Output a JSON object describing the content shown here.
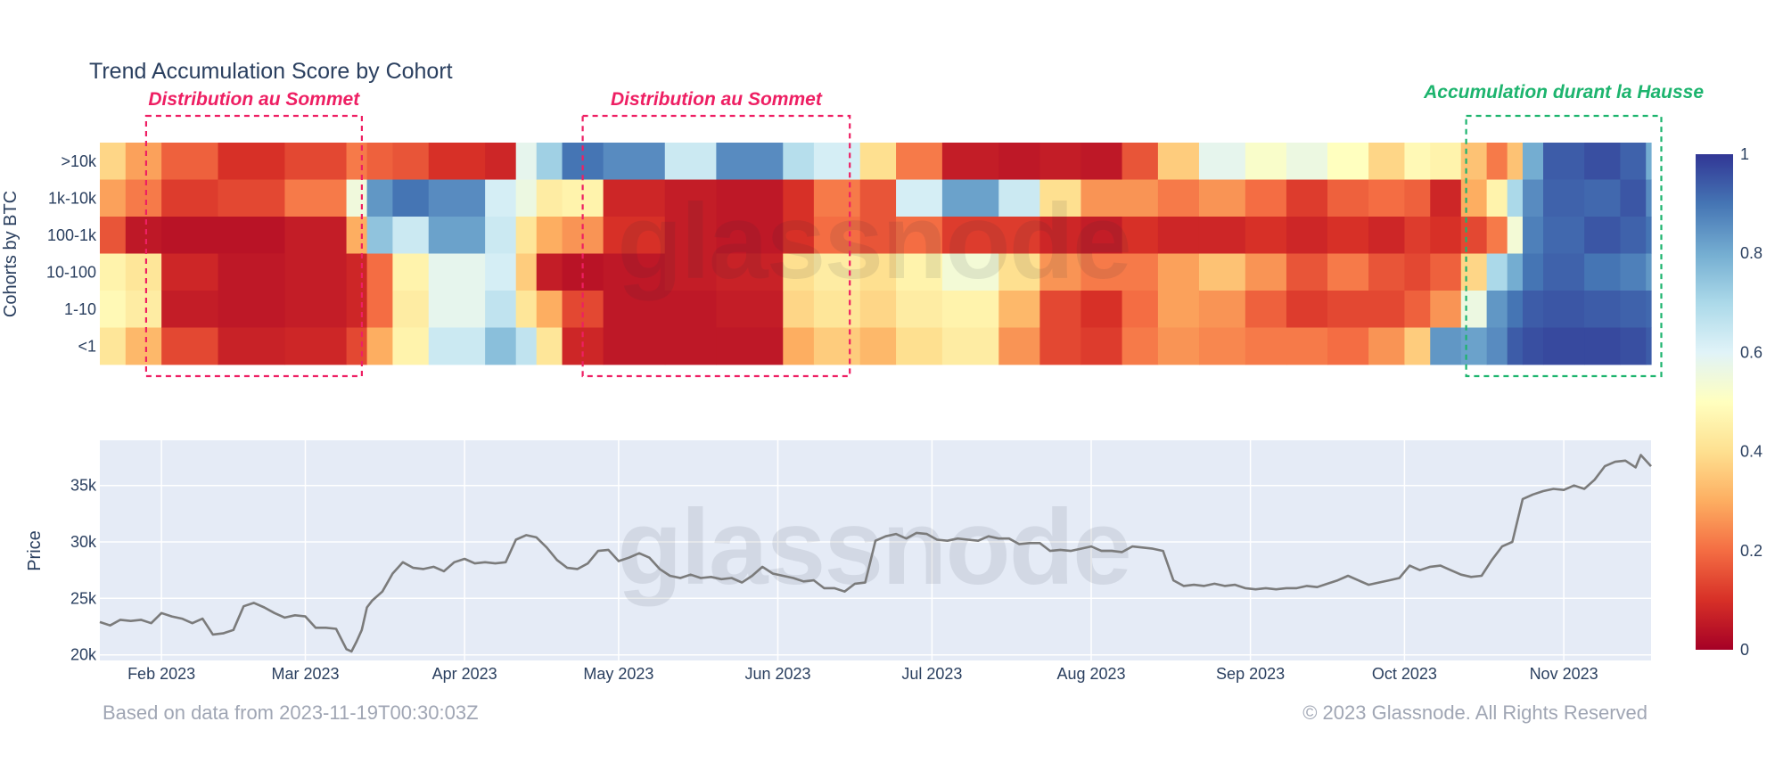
{
  "colors": {
    "distribution": "#ee1f63",
    "accumulation": "#1db46e",
    "price_line": "#7b7b7b",
    "plot_bg": "#e5ebf6",
    "colorscale": [
      "#a50026",
      "#d73027",
      "#f46d43",
      "#fdae61",
      "#fee090",
      "#ffffbf",
      "#e0f3f8",
      "#abd9e9",
      "#74add1",
      "#4575b4",
      "#313695"
    ]
  },
  "chart_data": [
    {
      "type": "heatmap",
      "title": "Trend Accumulation Score by Cohort",
      "ylabel": "Cohorts by BTC",
      "rows": [
        ">10k",
        "1k-10k",
        "100-1k",
        "10-100",
        "1-10",
        "<1"
      ],
      "x_range": [
        "2023-01-20",
        "2023-11-18"
      ],
      "zlim": [
        0,
        1
      ],
      "colorbar_ticks": [
        "1",
        "0.8",
        "0.6",
        "0.4",
        "0.2",
        "0"
      ],
      "segments": [
        {
          "start": "2023-01-20",
          "scores": [
            0.38,
            0.28,
            0.16,
            0.46,
            0.48,
            0.42
          ]
        },
        {
          "start": "2023-01-25",
          "scores": [
            0.28,
            0.22,
            0.05,
            0.42,
            0.44,
            0.32
          ]
        },
        {
          "start": "2023-02-01",
          "scores": [
            0.18,
            0.12,
            0.04,
            0.08,
            0.06,
            0.14
          ]
        },
        {
          "start": "2023-02-12",
          "scores": [
            0.1,
            0.14,
            0.04,
            0.05,
            0.05,
            0.07
          ]
        },
        {
          "start": "2023-02-25",
          "scores": [
            0.14,
            0.22,
            0.06,
            0.06,
            0.06,
            0.08
          ]
        },
        {
          "start": "2023-03-09",
          "scores": [
            0.22,
            0.55,
            0.3,
            0.08,
            0.08,
            0.14
          ]
        },
        {
          "start": "2023-03-13",
          "scores": [
            0.18,
            0.84,
            0.75,
            0.2,
            0.2,
            0.3
          ]
        },
        {
          "start": "2023-03-18",
          "scores": [
            0.16,
            0.9,
            0.64,
            0.46,
            0.44,
            0.46
          ]
        },
        {
          "start": "2023-03-25",
          "scores": [
            0.1,
            0.86,
            0.82,
            0.58,
            0.58,
            0.64
          ]
        },
        {
          "start": "2023-04-05",
          "scores": [
            0.08,
            0.62,
            0.64,
            0.62,
            0.66,
            0.76
          ]
        },
        {
          "start": "2023-04-11",
          "scores": [
            0.58,
            0.56,
            0.42,
            0.36,
            0.42,
            0.66
          ]
        },
        {
          "start": "2023-04-15",
          "scores": [
            0.72,
            0.44,
            0.3,
            0.06,
            0.3,
            0.42
          ]
        },
        {
          "start": "2023-04-20",
          "scores": [
            0.9,
            0.46,
            0.26,
            0.04,
            0.14,
            0.08
          ]
        },
        {
          "start": "2023-04-28",
          "scores": [
            0.86,
            0.08,
            0.1,
            0.05,
            0.05,
            0.05
          ]
        },
        {
          "start": "2023-05-10",
          "scores": [
            0.64,
            0.06,
            0.06,
            0.06,
            0.05,
            0.05
          ]
        },
        {
          "start": "2023-05-20",
          "scores": [
            0.86,
            0.05,
            0.05,
            0.07,
            0.06,
            0.05
          ]
        },
        {
          "start": "2023-06-02",
          "scores": [
            0.68,
            0.1,
            0.1,
            0.4,
            0.38,
            0.3
          ]
        },
        {
          "start": "2023-06-08",
          "scores": [
            0.62,
            0.22,
            0.2,
            0.44,
            0.42,
            0.36
          ]
        },
        {
          "start": "2023-06-17",
          "scores": [
            0.4,
            0.16,
            0.16,
            0.4,
            0.38,
            0.32
          ]
        },
        {
          "start": "2023-06-24",
          "scores": [
            0.22,
            0.62,
            0.2,
            0.46,
            0.44,
            0.4
          ]
        },
        {
          "start": "2023-07-03",
          "scores": [
            0.06,
            0.82,
            0.12,
            0.54,
            0.46,
            0.44
          ]
        },
        {
          "start": "2023-07-14",
          "scores": [
            0.05,
            0.64,
            0.12,
            0.4,
            0.32,
            0.26
          ]
        },
        {
          "start": "2023-07-22",
          "scores": [
            0.06,
            0.4,
            0.08,
            0.26,
            0.14,
            0.14
          ]
        },
        {
          "start": "2023-07-30",
          "scores": [
            0.05,
            0.26,
            0.06,
            0.22,
            0.1,
            0.12
          ]
        },
        {
          "start": "2023-08-07",
          "scores": [
            0.16,
            0.26,
            0.1,
            0.22,
            0.2,
            0.22
          ]
        },
        {
          "start": "2023-08-14",
          "scores": [
            0.36,
            0.22,
            0.08,
            0.28,
            0.28,
            0.26
          ]
        },
        {
          "start": "2023-08-22",
          "scores": [
            0.58,
            0.26,
            0.08,
            0.34,
            0.26,
            0.24
          ]
        },
        {
          "start": "2023-08-31",
          "scores": [
            0.52,
            0.2,
            0.1,
            0.26,
            0.18,
            0.22
          ]
        },
        {
          "start": "2023-09-08",
          "scores": [
            0.56,
            0.12,
            0.08,
            0.16,
            0.12,
            0.22
          ]
        },
        {
          "start": "2023-09-16",
          "scores": [
            0.5,
            0.18,
            0.1,
            0.22,
            0.14,
            0.2
          ]
        },
        {
          "start": "2023-09-24",
          "scores": [
            0.38,
            0.2,
            0.08,
            0.16,
            0.14,
            0.26
          ]
        },
        {
          "start": "2023-10-01",
          "scores": [
            0.48,
            0.18,
            0.12,
            0.14,
            0.18,
            0.36
          ]
        },
        {
          "start": "2023-10-06",
          "scores": [
            0.46,
            0.08,
            0.1,
            0.18,
            0.26,
            0.84
          ]
        },
        {
          "start": "2023-10-12",
          "scores": [
            0.34,
            0.3,
            0.14,
            0.38,
            0.56,
            0.82
          ]
        },
        {
          "start": "2023-10-17",
          "scores": [
            0.22,
            0.46,
            0.22,
            0.7,
            0.84,
            0.86
          ]
        },
        {
          "start": "2023-10-21",
          "scores": [
            0.34,
            0.7,
            0.54,
            0.8,
            0.9,
            0.94
          ]
        },
        {
          "start": "2023-10-24",
          "scores": [
            0.8,
            0.86,
            0.88,
            0.9,
            0.94,
            0.96
          ]
        },
        {
          "start": "2023-10-28",
          "scores": [
            0.94,
            0.93,
            0.92,
            0.93,
            0.95,
            0.97
          ]
        },
        {
          "start": "2023-11-05",
          "scores": [
            0.96,
            0.92,
            0.95,
            0.9,
            0.94,
            0.97
          ]
        },
        {
          "start": "2023-11-12",
          "scores": [
            0.93,
            0.95,
            0.93,
            0.88,
            0.93,
            0.96
          ]
        },
        {
          "start": "2023-11-17",
          "scores": [
            0.8,
            0.86,
            0.9,
            0.84,
            0.92,
            0.94
          ]
        }
      ],
      "annotations": [
        {
          "text": "Distribution au Sommet",
          "from": "2023-01-29",
          "to": "2023-03-12",
          "kind": "distribution"
        },
        {
          "text": "Distribution au Sommet",
          "from": "2023-04-24",
          "to": "2023-06-15",
          "kind": "distribution"
        },
        {
          "text": "Accumulation durant la Hausse",
          "from": "2023-10-13",
          "to": "2023-11-20",
          "kind": "accumulation"
        }
      ],
      "watermark": "glassnode"
    },
    {
      "type": "line",
      "ylabel": "Price",
      "x_range": [
        "2023-01-20",
        "2023-11-18"
      ],
      "ylim": [
        19500,
        39000
      ],
      "yticks": [
        20000,
        25000,
        30000,
        35000
      ],
      "ytick_labels": [
        "20k",
        "25k",
        "30k",
        "35k"
      ],
      "xticks": [
        "2023-02-01",
        "2023-03-01",
        "2023-04-01",
        "2023-05-01",
        "2023-06-01",
        "2023-07-01",
        "2023-08-01",
        "2023-09-01",
        "2023-10-01",
        "2023-11-01"
      ],
      "xtick_labels": [
        "Feb 2023",
        "Mar 2023",
        "Apr 2023",
        "May 2023",
        "Jun 2023",
        "Jul 2023",
        "Aug 2023",
        "Sep 2023",
        "Oct 2023",
        "Nov 2023"
      ],
      "series": [
        {
          "x": [
            "2023-01-20",
            "2023-01-22",
            "2023-01-24",
            "2023-01-26",
            "2023-01-28",
            "2023-01-30",
            "2023-02-01",
            "2023-02-03",
            "2023-02-05",
            "2023-02-07",
            "2023-02-09",
            "2023-02-11",
            "2023-02-13",
            "2023-02-15",
            "2023-02-17",
            "2023-02-19",
            "2023-02-21",
            "2023-02-23",
            "2023-02-25",
            "2023-02-27",
            "2023-03-01",
            "2023-03-03",
            "2023-03-05",
            "2023-03-07",
            "2023-03-09",
            "2023-03-10",
            "2023-03-11",
            "2023-03-12",
            "2023-03-13",
            "2023-03-14",
            "2023-03-16",
            "2023-03-18",
            "2023-03-20",
            "2023-03-22",
            "2023-03-24",
            "2023-03-26",
            "2023-03-28",
            "2023-03-30",
            "2023-04-01",
            "2023-04-03",
            "2023-04-05",
            "2023-04-07",
            "2023-04-09",
            "2023-04-11",
            "2023-04-13",
            "2023-04-15",
            "2023-04-17",
            "2023-04-19",
            "2023-04-21",
            "2023-04-23",
            "2023-04-25",
            "2023-04-27",
            "2023-04-29",
            "2023-05-01",
            "2023-05-03",
            "2023-05-05",
            "2023-05-07",
            "2023-05-09",
            "2023-05-11",
            "2023-05-13",
            "2023-05-15",
            "2023-05-17",
            "2023-05-19",
            "2023-05-21",
            "2023-05-23",
            "2023-05-25",
            "2023-05-27",
            "2023-05-29",
            "2023-05-31",
            "2023-06-02",
            "2023-06-04",
            "2023-06-06",
            "2023-06-08",
            "2023-06-10",
            "2023-06-12",
            "2023-06-14",
            "2023-06-16",
            "2023-06-18",
            "2023-06-20",
            "2023-06-22",
            "2023-06-24",
            "2023-06-26",
            "2023-06-28",
            "2023-06-30",
            "2023-07-02",
            "2023-07-04",
            "2023-07-06",
            "2023-07-08",
            "2023-07-10",
            "2023-07-12",
            "2023-07-14",
            "2023-07-16",
            "2023-07-18",
            "2023-07-20",
            "2023-07-22",
            "2023-07-24",
            "2023-07-26",
            "2023-07-28",
            "2023-07-30",
            "2023-08-01",
            "2023-08-03",
            "2023-08-05",
            "2023-08-07",
            "2023-08-09",
            "2023-08-11",
            "2023-08-13",
            "2023-08-15",
            "2023-08-17",
            "2023-08-19",
            "2023-08-21",
            "2023-08-23",
            "2023-08-25",
            "2023-08-27",
            "2023-08-29",
            "2023-08-31",
            "2023-09-02",
            "2023-09-04",
            "2023-09-06",
            "2023-09-08",
            "2023-09-10",
            "2023-09-12",
            "2023-09-14",
            "2023-09-16",
            "2023-09-18",
            "2023-09-20",
            "2023-09-22",
            "2023-09-24",
            "2023-09-26",
            "2023-09-28",
            "2023-09-30",
            "2023-10-02",
            "2023-10-04",
            "2023-10-06",
            "2023-10-08",
            "2023-10-10",
            "2023-10-12",
            "2023-10-14",
            "2023-10-16",
            "2023-10-18",
            "2023-10-20",
            "2023-10-22",
            "2023-10-24",
            "2023-10-26",
            "2023-10-28",
            "2023-10-30",
            "2023-11-01",
            "2023-11-03",
            "2023-11-05",
            "2023-11-07",
            "2023-11-09",
            "2023-11-11",
            "2023-11-13",
            "2023-11-15",
            "2023-11-16",
            "2023-11-18"
          ],
          "values": [
            22900,
            22600,
            23100,
            23000,
            23100,
            22800,
            23700,
            23400,
            23200,
            22800,
            23200,
            21800,
            21900,
            22200,
            24300,
            24600,
            24200,
            23700,
            23300,
            23500,
            23400,
            22400,
            22400,
            22300,
            20500,
            20300,
            21200,
            22200,
            24200,
            24800,
            25600,
            27200,
            28200,
            27700,
            27600,
            27800,
            27400,
            28200,
            28500,
            28100,
            28200,
            28100,
            28200,
            30200,
            30600,
            30400,
            29500,
            28400,
            27700,
            27600,
            28100,
            29200,
            29300,
            28300,
            28600,
            29000,
            28600,
            27600,
            27000,
            26800,
            27100,
            26800,
            26900,
            26700,
            26800,
            26400,
            27000,
            27800,
            27200,
            27000,
            26800,
            26500,
            26600,
            25900,
            25900,
            25600,
            26300,
            26400,
            30100,
            30500,
            30700,
            30300,
            30800,
            30700,
            30200,
            30100,
            30300,
            30200,
            30100,
            30500,
            30300,
            30300,
            29800,
            29900,
            29900,
            29200,
            29300,
            29200,
            29400,
            29600,
            29200,
            29200,
            29100,
            29600,
            29500,
            29400,
            29200,
            26600,
            26100,
            26200,
            26100,
            26300,
            26100,
            26200,
            25900,
            25800,
            25900,
            25800,
            25900,
            25900,
            26100,
            26000,
            26300,
            26600,
            27000,
            26600,
            26200,
            26400,
            26600,
            26800,
            27900,
            27500,
            27800,
            27900,
            27500,
            27100,
            26900,
            27000,
            28400,
            29600,
            30000,
            33800,
            34200,
            34500,
            34700,
            34600,
            35000,
            34700,
            35500,
            36700,
            37100,
            37200,
            36600,
            37700,
            36700
          ]
        }
      ]
    }
  ],
  "footer": {
    "left": "Based on data from 2023-11-19T00:30:03Z",
    "right": "© 2023 Glassnode. All Rights Reserved"
  }
}
